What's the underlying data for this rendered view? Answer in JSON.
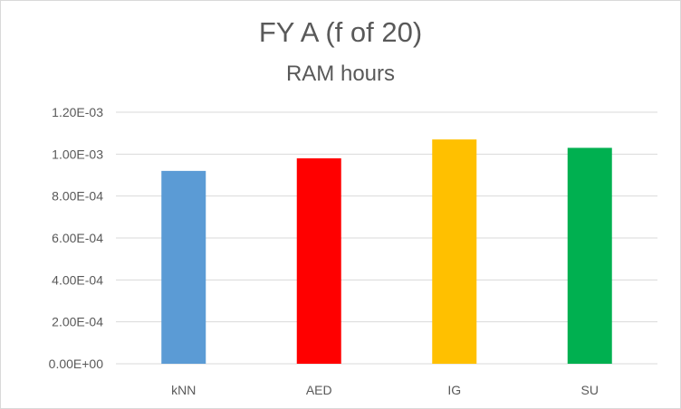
{
  "chart_data": {
    "type": "bar",
    "title": "FY A (f of 20)",
    "subtitle": "RAM hours",
    "xlabel": "",
    "ylabel": "",
    "categories": [
      "kNN",
      "AED",
      "IG",
      "SU"
    ],
    "values": [
      0.00092,
      0.00098,
      0.00107,
      0.00103
    ],
    "colors": [
      "#5b9bd5",
      "#ff0000",
      "#ffc000",
      "#00b050"
    ],
    "ylim": [
      0,
      0.0012
    ],
    "yticks": [
      {
        "value": 0,
        "label": "0.00E+00"
      },
      {
        "value": 0.0002,
        "label": "2.00E-04"
      },
      {
        "value": 0.0004,
        "label": "4.00E-04"
      },
      {
        "value": 0.0006,
        "label": "6.00E-04"
      },
      {
        "value": 0.0008,
        "label": "8.00E-04"
      },
      {
        "value": 0.001,
        "label": "1.00E-03"
      },
      {
        "value": 0.0012,
        "label": "1.20E-03"
      }
    ],
    "grid": true,
    "gridline_color": "#d9d9d9",
    "legend": "none"
  }
}
